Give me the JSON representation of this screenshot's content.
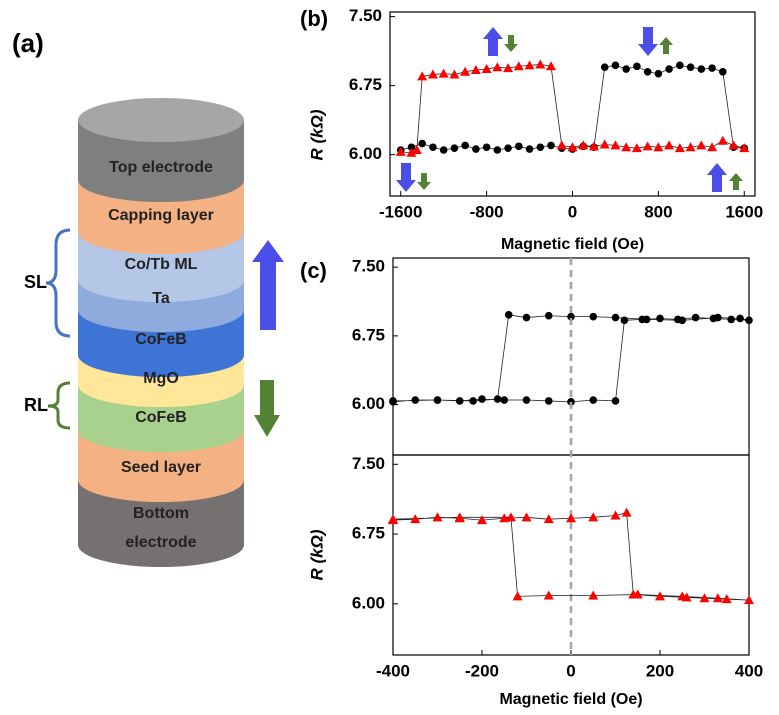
{
  "diagram": {
    "label": "(a)",
    "layers": [
      "Top electrode",
      "Capping layer",
      "Co/Tb ML",
      "Ta",
      "CoFeB",
      "MgO",
      "CoFeB",
      "Seed layer"
    ],
    "bottom_electrode": [
      "Bottom",
      "electrode"
    ],
    "brackets": [
      "SL",
      "RL"
    ]
  },
  "chart_data": [
    {
      "type": "line",
      "label": "(b)",
      "xlabel": "Magnetic field (Oe)",
      "ylabel": "R (kΩ)",
      "xlim": [
        -1700,
        1700
      ],
      "xticks": [
        -1600,
        -800,
        0,
        800,
        1600
      ],
      "ylim": [
        5.55,
        7.55
      ],
      "yticks": [
        {
          "value": 6,
          "label": "6.00"
        },
        {
          "value": 6.75,
          "label": "6.75"
        },
        {
          "value": 7.5,
          "label": "7.50"
        }
      ],
      "series": [
        {
          "color": "#000000",
          "marker": "circle",
          "x": [
            -1600,
            -1500,
            -1400,
            -1300,
            -1200,
            -1100,
            -1000,
            -900,
            -800,
            -700,
            -600,
            -500,
            -400,
            -300,
            -200,
            -100,
            0,
            100,
            200,
            300,
            400,
            500,
            600,
            700,
            800,
            900,
            1000,
            1100,
            1200,
            1300,
            1400,
            1500,
            1600
          ],
          "values": [
            6.05,
            6.08,
            6.12,
            6.08,
            6.05,
            6.07,
            6.1,
            6.06,
            6.08,
            6.05,
            6.07,
            6.09,
            6.06,
            6.08,
            6.1,
            6.07,
            6.06,
            6.09,
            6.08,
            6.95,
            6.97,
            6.93,
            6.96,
            6.9,
            6.88,
            6.93,
            6.97,
            6.95,
            6.93,
            6.94,
            6.9,
            6.08,
            6.07
          ]
        },
        {
          "color": "#ff0000",
          "marker": "triangle",
          "x": [
            -1600,
            -1500,
            -1450,
            -1400,
            -1300,
            -1200,
            -1100,
            -1000,
            -900,
            -800,
            -700,
            -600,
            -500,
            -400,
            -300,
            -200,
            -100,
            0,
            100,
            200,
            300,
            400,
            500,
            600,
            700,
            800,
            900,
            1000,
            1100,
            1200,
            1300,
            1400,
            1500,
            1600
          ],
          "values": [
            6.03,
            6.02,
            6.05,
            6.85,
            6.87,
            6.88,
            6.87,
            6.9,
            6.92,
            6.93,
            6.95,
            6.94,
            6.96,
            6.97,
            6.98,
            6.96,
            6.1,
            6.08,
            6.1,
            6.09,
            6.11,
            6.1,
            6.08,
            6.07,
            6.09,
            6.08,
            6.1,
            6.07,
            6.08,
            6.1,
            6.08,
            6.15,
            6.1,
            6.07
          ]
        }
      ]
    },
    {
      "type": "line",
      "label": "(c)",
      "xlim": [
        -400,
        400
      ],
      "vline": 0,
      "ylim": [
        5.45,
        7.6
      ],
      "yticks": [
        {
          "value": 6,
          "label": "6.00"
        },
        {
          "value": 6.75,
          "label": "6.75"
        },
        {
          "value": 7.5,
          "label": "7.50"
        }
      ],
      "series": [
        {
          "color": "#000000",
          "marker": "circle",
          "x": [
            -400,
            -350,
            -300,
            -250,
            -200,
            -150,
            -100,
            -50,
            0,
            50,
            100,
            120,
            160,
            200,
            240,
            280,
            320,
            360,
            400,
            380,
            330,
            250,
            170,
            100,
            50,
            0,
            -50,
            -100,
            -140,
            -165,
            -220,
            -300,
            -400
          ],
          "values": [
            6.03,
            6.05,
            6.05,
            6.04,
            6.06,
            6.05,
            6.05,
            6.04,
            6.03,
            6.05,
            6.04,
            6.92,
            6.93,
            6.94,
            6.93,
            6.95,
            6.94,
            6.93,
            6.92,
            6.94,
            6.95,
            6.92,
            6.93,
            6.95,
            6.96,
            6.96,
            6.97,
            6.95,
            6.98,
            6.06,
            6.04,
            6.05,
            6.04
          ]
        }
      ]
    },
    {
      "type": "line",
      "xlabel": "Magnetic field (Oe)",
      "ylabel": "R (kΩ)",
      "xlim": [
        -400,
        400
      ],
      "xticks": [
        -400,
        -200,
        0,
        200,
        400
      ],
      "vline": 0,
      "ylim": [
        5.45,
        7.6
      ],
      "yticks": [
        {
          "value": 6,
          "label": "6.00"
        },
        {
          "value": 6.75,
          "label": "6.75"
        },
        {
          "value": 7.5,
          "label": "7.50"
        }
      ],
      "series": [
        {
          "color": "#ff0000",
          "marker": "triangle",
          "x": [
            -400,
            -350,
            -300,
            -250,
            -200,
            -150,
            -100,
            -50,
            0,
            50,
            100,
            125,
            140,
            200,
            260,
            300,
            350,
            400,
            330,
            250,
            150,
            50,
            -50,
            -120,
            -135,
            -250,
            -400
          ],
          "values": [
            6.9,
            6.91,
            6.93,
            6.92,
            6.9,
            6.92,
            6.93,
            6.91,
            6.92,
            6.93,
            6.95,
            6.98,
            6.1,
            6.08,
            6.07,
            6.06,
            6.05,
            6.04,
            6.06,
            6.08,
            6.1,
            6.09,
            6.09,
            6.08,
            6.93,
            6.93,
            6.91
          ]
        }
      ]
    }
  ]
}
